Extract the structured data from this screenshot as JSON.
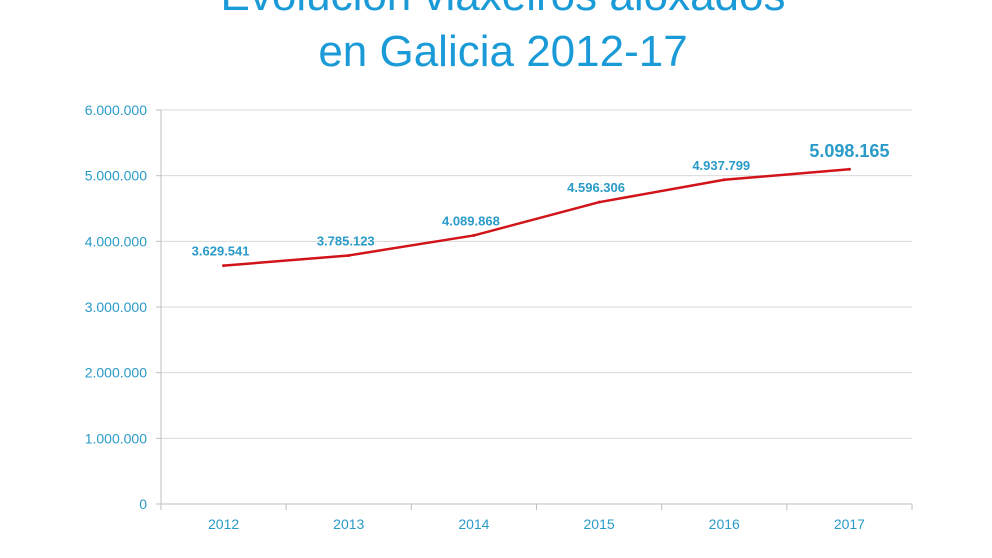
{
  "chart_data": {
    "type": "line",
    "title_lines": [
      "Evolución viaxeiros aloxados",
      "en Galicia 2012-17"
    ],
    "categories": [
      "2012",
      "2013",
      "2014",
      "2015",
      "2016",
      "2017"
    ],
    "series": [
      {
        "values": [
          3629541,
          3785123,
          4089868,
          4596306,
          4937799,
          5098165
        ],
        "labels": [
          "3.629.541",
          "3.785.123",
          "4.089.868",
          "4.596.306",
          "4.937.799",
          "5.098.165"
        ],
        "color": "#d0141a"
      }
    ],
    "yticks": [
      {
        "value": 0,
        "label": "0"
      },
      {
        "value": 1000000,
        "label": "1.000.000"
      },
      {
        "value": 2000000,
        "label": "2.000.000"
      },
      {
        "value": 3000000,
        "label": "3.000.000"
      },
      {
        "value": 4000000,
        "label": "4.000.000"
      },
      {
        "value": 5000000,
        "label": "5.000.000"
      },
      {
        "value": 6000000,
        "label": "6.000.000"
      }
    ],
    "ylim": [
      0,
      6000000
    ],
    "grid": true,
    "legend": "none",
    "colors": {
      "text": "#2a9bc8",
      "title": "#1a9bd7",
      "line": "#d0141a",
      "grid": "#d9d9d9"
    }
  }
}
